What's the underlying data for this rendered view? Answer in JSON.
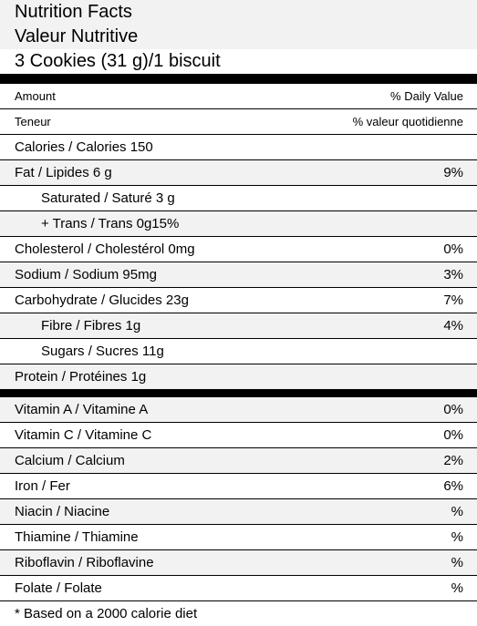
{
  "header": {
    "title": "Nutrition Facts",
    "title_fr": "Valeur Nutritive",
    "serving": "3 Cookies (31 g)/1 biscuit"
  },
  "column_headers": [
    {
      "left": "Amount",
      "right": "% Daily Value"
    },
    {
      "left": "Teneur",
      "right": "% valeur quotidienne"
    }
  ],
  "nutrients": [
    {
      "label": "Calories / Calories 150"
    },
    {
      "label": "Fat / Lipides 6 g",
      "dv": "9%"
    },
    {
      "label": "Saturated / Saturé 3 g",
      "indent": true
    },
    {
      "label": "+ Trans / Trans 0g15%",
      "indent": true
    },
    {
      "label": "Cholesterol / Cholestérol 0mg",
      "dv": "0%"
    },
    {
      "label": "Sodium / Sodium 95mg",
      "dv": "3%"
    },
    {
      "label": "Carbohydrate / Glucides 23g",
      "dv": "7%"
    },
    {
      "label": "Fibre / Fibres 1g",
      "dv": "4%",
      "indent": true
    },
    {
      "label": "Sugars / Sucres 11g",
      "indent": true
    },
    {
      "label": "Protein / Protéines 1g"
    }
  ],
  "vitamins": [
    {
      "label": "Vitamin A / Vitamine A",
      "dv": "0%"
    },
    {
      "label": "Vitamin C / Vitamine C",
      "dv": "0%"
    },
    {
      "label": "Calcium / Calcium",
      "dv": "2%"
    },
    {
      "label": "Iron / Fer",
      "dv": "6%"
    },
    {
      "label": "Niacin / Niacine",
      "dv": "%"
    },
    {
      "label": "Thiamine / Thiamine",
      "dv": "%"
    },
    {
      "label": "Riboflavin / Riboflavine",
      "dv": "%"
    },
    {
      "label": "Folate / Folate",
      "dv": "%"
    }
  ],
  "footnote": "* Based on a 2000 calorie diet"
}
